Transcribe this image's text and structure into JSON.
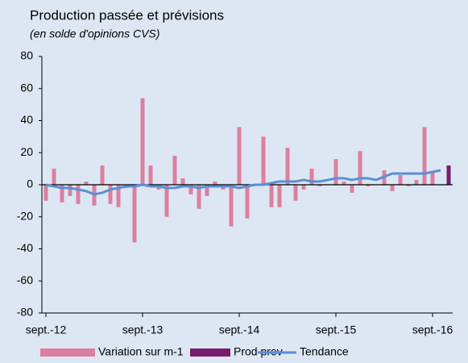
{
  "chart_data": {
    "type": "bar_line",
    "title": "Production passée et prévisions",
    "subtitle": "(en solde d'opinions CVS)",
    "categories": [
      "sept.-12",
      null,
      null,
      null,
      null,
      null,
      null,
      null,
      null,
      null,
      null,
      null,
      "sept.-13",
      null,
      null,
      null,
      null,
      null,
      null,
      null,
      null,
      null,
      null,
      null,
      "sept.-14",
      null,
      null,
      null,
      null,
      null,
      null,
      null,
      null,
      null,
      null,
      null,
      "sept.-15",
      null,
      null,
      null,
      null,
      null,
      null,
      null,
      null,
      null,
      null,
      null,
      "sept.-16",
      null,
      null
    ],
    "series": [
      {
        "name": "Variation sur m-1",
        "kind": "bar",
        "color": "#dc7fa0",
        "values": [
          -10,
          10,
          -11,
          -7,
          -12,
          2,
          -13,
          12,
          -12,
          -14,
          -2,
          -36,
          54,
          12,
          -3,
          -20,
          18,
          4,
          -6,
          -15,
          -7,
          2,
          -3,
          -26,
          36,
          -21,
          0,
          30,
          -14,
          -14,
          23,
          -10,
          -3,
          10,
          -1,
          0,
          16,
          2,
          -5,
          21,
          -1,
          0,
          9,
          -4,
          6,
          -1,
          3,
          36,
          8,
          null,
          null
        ]
      },
      {
        "name": "Prod prev",
        "kind": "bar",
        "color": "#7b1a6e",
        "values": [
          null,
          null,
          null,
          null,
          null,
          null,
          null,
          null,
          null,
          null,
          null,
          null,
          null,
          null,
          null,
          null,
          null,
          null,
          null,
          null,
          null,
          null,
          null,
          null,
          null,
          null,
          null,
          null,
          null,
          null,
          null,
          null,
          null,
          null,
          null,
          null,
          null,
          null,
          null,
          null,
          null,
          null,
          null,
          null,
          null,
          null,
          null,
          null,
          null,
          null,
          12
        ]
      },
      {
        "name": "Tendance",
        "kind": "line",
        "color": "#5b8fd1",
        "values": [
          0,
          -1,
          -2,
          -2,
          -3,
          -4,
          -6,
          -5,
          -3,
          -2,
          -1,
          -1,
          0,
          -1,
          -1,
          -2,
          -2,
          -1,
          -1,
          -2,
          -1,
          -1,
          -1,
          -1,
          -2,
          -1,
          0,
          0,
          1,
          2,
          2,
          2,
          3,
          2,
          2,
          3,
          4,
          4,
          3,
          4,
          4,
          3,
          5,
          7,
          7,
          7,
          7,
          7,
          8,
          9,
          null
        ]
      }
    ],
    "ylim": [
      -80,
      80
    ],
    "yticks": [
      -80,
      -60,
      -40,
      -20,
      0,
      20,
      40,
      60,
      80
    ]
  }
}
